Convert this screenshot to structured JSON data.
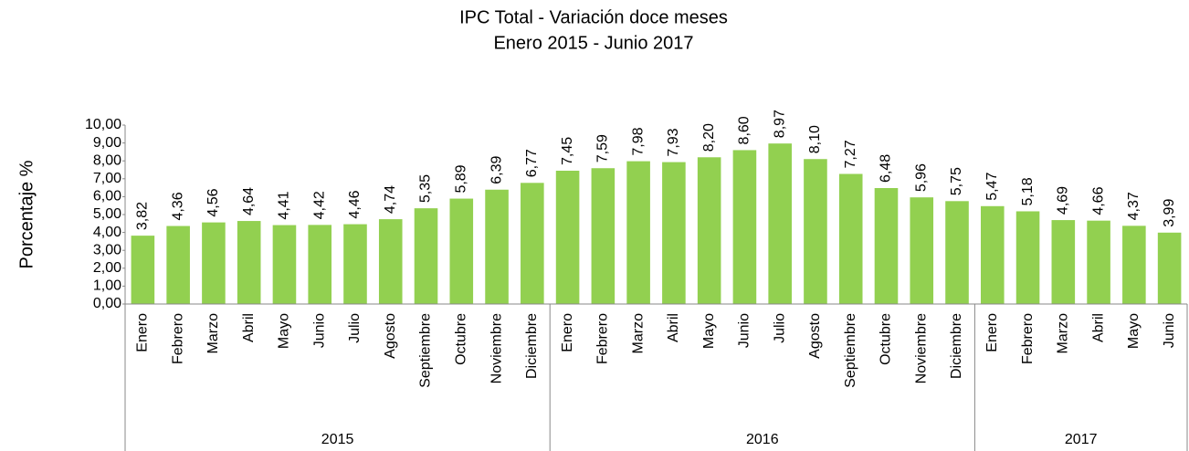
{
  "chart_data": {
    "type": "bar",
    "title": "IPC Total - Variación doce meses",
    "subtitle": "Enero 2015 - Junio 2017",
    "y_label": "Porcentaje %",
    "color": "#92d050",
    "ylim": [
      0,
      10
    ],
    "yticks": [
      {
        "value": 0,
        "label": "0,00"
      },
      {
        "value": 1,
        "label": "1,00"
      },
      {
        "value": 2,
        "label": "2,00"
      },
      {
        "value": 3,
        "label": "3,00"
      },
      {
        "value": 4,
        "label": "4,00"
      },
      {
        "value": 5,
        "label": "5,00"
      },
      {
        "value": 6,
        "label": "6,00"
      },
      {
        "value": 7,
        "label": "7,00"
      },
      {
        "value": 8,
        "label": "8,00"
      },
      {
        "value": 9,
        "label": "9,00"
      },
      {
        "value": 10,
        "label": "10,00"
      }
    ],
    "groups": [
      {
        "name": "2015",
        "categories": [
          "Enero",
          "Febrero",
          "Marzo",
          "Abril",
          "Mayo",
          "Junio",
          "Julio",
          "Agosto",
          "Septiembre",
          "Octubre",
          "Noviembre",
          "Diciembre"
        ],
        "values": [
          3.82,
          4.36,
          4.56,
          4.64,
          4.41,
          4.42,
          4.46,
          4.74,
          5.35,
          5.89,
          6.39,
          6.77
        ],
        "value_labels": [
          "3,82",
          "4,36",
          "4,56",
          "4,64",
          "4,41",
          "4,42",
          "4,46",
          "4,74",
          "5,35",
          "5,89",
          "6,39",
          "6,77"
        ]
      },
      {
        "name": "2016",
        "categories": [
          "Enero",
          "Febrero",
          "Marzo",
          "Abril",
          "Mayo",
          "Junio",
          "Julio",
          "Agosto",
          "Septiembre",
          "Octubre",
          "Noviembre",
          "Diciembre"
        ],
        "values": [
          7.45,
          7.59,
          7.98,
          7.93,
          8.2,
          8.6,
          8.97,
          8.1,
          7.27,
          6.48,
          5.96,
          5.75
        ],
        "value_labels": [
          "7,45",
          "7,59",
          "7,98",
          "7,93",
          "8,20",
          "8,60",
          "8,97",
          "8,10",
          "7,27",
          "6,48",
          "5,96",
          "5,75"
        ]
      },
      {
        "name": "2017",
        "categories": [
          "Enero",
          "Febrero",
          "Marzo",
          "Abril",
          "Mayo",
          "Junio"
        ],
        "values": [
          5.47,
          5.18,
          4.69,
          4.66,
          4.37,
          3.99
        ],
        "value_labels": [
          "5,47",
          "5,18",
          "4,69",
          "4,66",
          "4,37",
          "3,99"
        ]
      }
    ]
  }
}
